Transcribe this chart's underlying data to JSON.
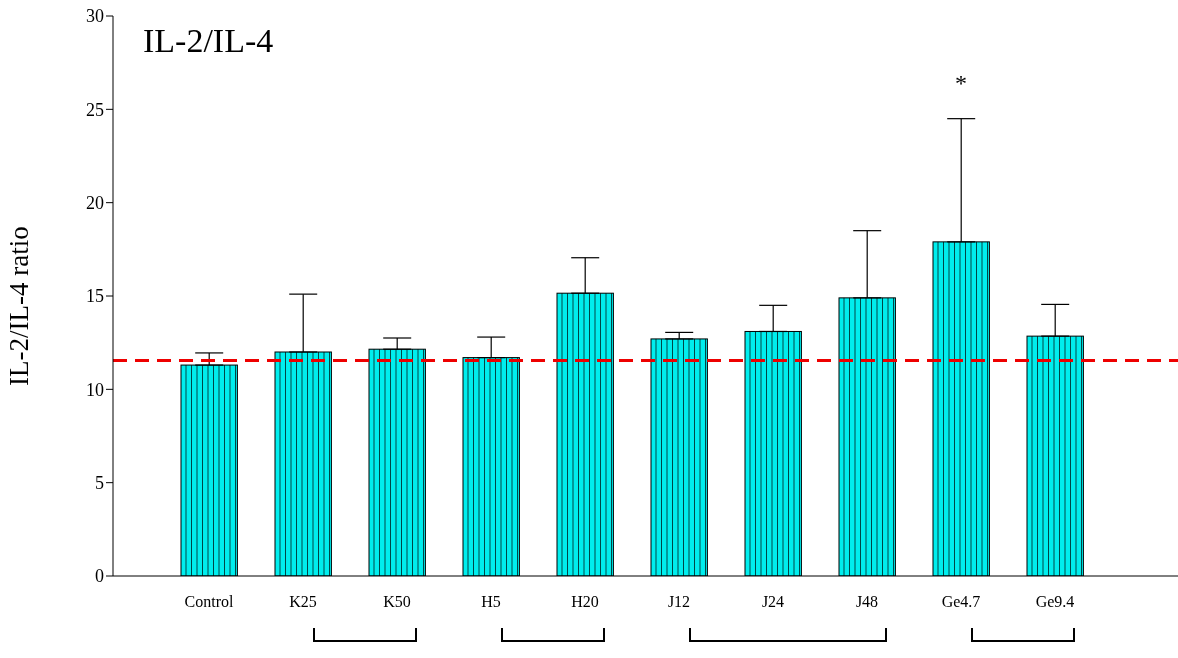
{
  "chart_data": {
    "type": "bar",
    "title": "IL-2/IL-4",
    "ylabel": "IL-2/IL-4  ratio",
    "categories": [
      "Control",
      "K25",
      "K50",
      "H5",
      "H20",
      "J12",
      "J24",
      "J48",
      "Ge4.7",
      "Ge9.4"
    ],
    "values": [
      11.3,
      12.0,
      12.15,
      11.7,
      15.15,
      12.7,
      13.1,
      14.9,
      17.9,
      12.85
    ],
    "errors": [
      [
        11.3,
        11.95
      ],
      [
        12.0,
        15.1
      ],
      [
        12.15,
        12.75
      ],
      [
        11.7,
        12.8
      ],
      [
        15.15,
        17.05
      ],
      [
        12.7,
        13.05
      ],
      [
        13.1,
        14.5
      ],
      [
        14.9,
        18.5
      ],
      [
        17.9,
        24.5
      ],
      [
        12.85,
        14.55
      ]
    ],
    "color": "#00eeee",
    "ylim": [
      0,
      30
    ],
    "yticks": [
      0,
      5,
      10,
      15,
      20,
      25,
      30
    ],
    "grid": false,
    "legend": false,
    "ref_lines": [
      {
        "axis": "y",
        "value": 11.55,
        "color": "#ee0000",
        "line_style": "dashed"
      }
    ],
    "annotations": [
      "*"
    ]
  }
}
